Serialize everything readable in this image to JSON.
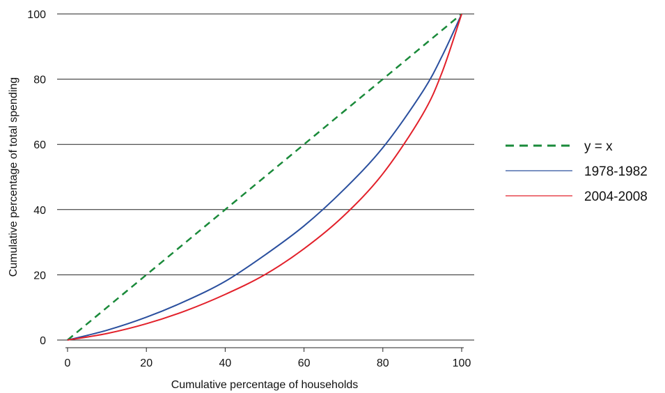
{
  "chart_data": {
    "type": "line",
    "title": "",
    "xlabel": "Cumulative percentage of households",
    "ylabel": "Cumulative percentage of total spending",
    "xlim": [
      0,
      100
    ],
    "ylim": [
      0,
      100
    ],
    "x_ticks": [
      0,
      20,
      40,
      60,
      80,
      100
    ],
    "y_ticks": [
      0,
      20,
      40,
      60,
      80,
      100
    ],
    "grid": "horizontal",
    "legend_position": "right",
    "series": [
      {
        "name": "y = x",
        "color": "#1a8a3a",
        "style": "dashed",
        "x": [
          0,
          100
        ],
        "y": [
          0,
          100
        ]
      },
      {
        "name": "1978-1982",
        "color": "#2a4f9e",
        "style": "solid",
        "x": [
          0,
          10,
          20,
          30,
          40,
          50,
          60,
          70,
          80,
          90,
          95,
          100
        ],
        "y": [
          0,
          3,
          7,
          12,
          18,
          26,
          35,
          46,
          59,
          76,
          87,
          100
        ]
      },
      {
        "name": "2004-2008",
        "color": "#e2202a",
        "style": "solid",
        "x": [
          0,
          10,
          20,
          30,
          40,
          50,
          60,
          70,
          80,
          90,
          95,
          100
        ],
        "y": [
          0,
          2,
          5,
          9,
          14,
          20,
          28,
          38,
          51,
          69,
          82,
          100
        ]
      }
    ]
  }
}
